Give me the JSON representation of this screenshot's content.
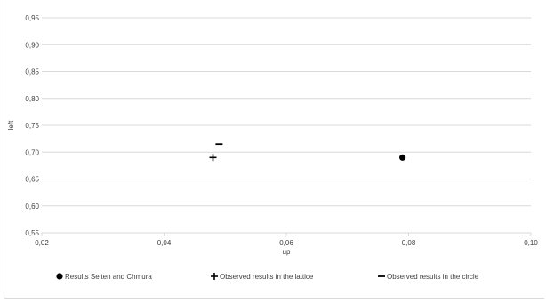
{
  "chart_data": {
    "type": "scatter",
    "title": "",
    "xlabel": "up",
    "ylabel": "left",
    "xlim": [
      0.02,
      0.1
    ],
    "ylim": [
      0.55,
      0.95
    ],
    "x_ticks": [
      "0,02",
      "0,04",
      "0,06",
      "0,08",
      "0,10"
    ],
    "y_ticks": [
      "0,55",
      "0,60",
      "0,65",
      "0,70",
      "0,75",
      "0,80",
      "0,85",
      "0,90",
      "0,95"
    ],
    "x_tick_values": [
      0.02,
      0.04,
      0.06,
      0.08,
      0.1
    ],
    "y_tick_values": [
      0.55,
      0.6,
      0.65,
      0.7,
      0.75,
      0.8,
      0.85,
      0.9,
      0.95
    ],
    "grid": "horizontal",
    "legend_position": "bottom",
    "series": [
      {
        "name": "Results Selten and Chmura",
        "marker": "circle",
        "color": "#000000",
        "points": [
          {
            "x": 0.079,
            "y": 0.69
          }
        ]
      },
      {
        "name": "Observed results in the lattice",
        "marker": "plus",
        "color": "#000000",
        "points": [
          {
            "x": 0.048,
            "y": 0.69
          }
        ]
      },
      {
        "name": "Observed results in the circle",
        "marker": "dash",
        "color": "#000000",
        "points": [
          {
            "x": 0.049,
            "y": 0.715
          }
        ]
      }
    ],
    "colors": {
      "grid": "#d9d9d9",
      "text": "#404040"
    }
  }
}
